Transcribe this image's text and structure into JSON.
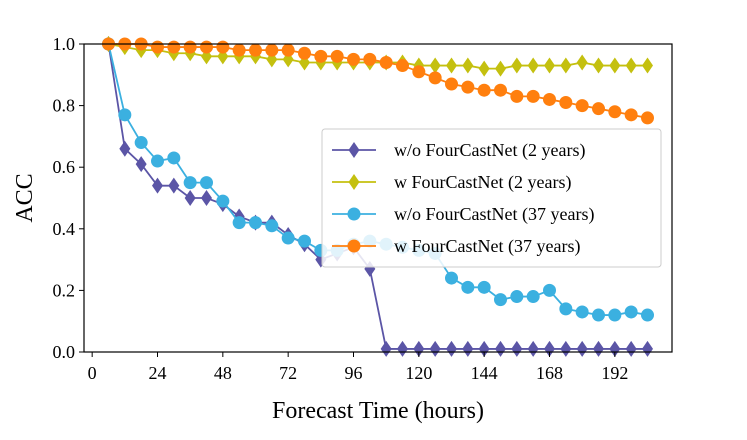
{
  "chart_data": {
    "type": "line",
    "title": "",
    "xlabel": "Forecast Time (hours)",
    "ylabel": "ACC",
    "xlim": [
      -3,
      213
    ],
    "ylim": [
      0,
      1
    ],
    "xticks": [
      0,
      24,
      48,
      72,
      96,
      120,
      144,
      168,
      192
    ],
    "yticks": [
      0.0,
      0.2,
      0.4,
      0.6,
      0.8,
      1.0
    ],
    "ytick_labels": [
      "0.0",
      "0.2",
      "0.4",
      "0.6",
      "0.8",
      "1.0"
    ],
    "legend_position": "center-right",
    "x": [
      6,
      12,
      18,
      24,
      30,
      36,
      42,
      48,
      54,
      60,
      66,
      72,
      78,
      84,
      90,
      96,
      102,
      108,
      114,
      120,
      126,
      132,
      138,
      144,
      150,
      156,
      162,
      168,
      174,
      180,
      186,
      192,
      198,
      204
    ],
    "series": [
      {
        "name": "w/o FourCastNet (2 years)",
        "color": "#5b55a6",
        "marker": "diamond",
        "values": [
          1.0,
          0.66,
          0.61,
          0.54,
          0.54,
          0.5,
          0.5,
          0.48,
          0.44,
          0.42,
          0.42,
          0.38,
          0.35,
          0.3,
          0.32,
          0.34,
          0.27,
          0.01,
          0.01,
          0.01,
          0.01,
          0.01,
          0.01,
          0.01,
          0.01,
          0.01,
          0.01,
          0.01,
          0.01,
          0.01,
          0.01,
          0.01,
          0.01,
          0.01
        ]
      },
      {
        "name": "w FourCastNet (2 years)",
        "color": "#c4c00f",
        "marker": "diamond",
        "values": [
          1.0,
          0.99,
          0.98,
          0.98,
          0.97,
          0.97,
          0.96,
          0.96,
          0.96,
          0.96,
          0.95,
          0.95,
          0.94,
          0.94,
          0.94,
          0.94,
          0.94,
          0.94,
          0.94,
          0.93,
          0.93,
          0.93,
          0.93,
          0.92,
          0.92,
          0.93,
          0.93,
          0.93,
          0.93,
          0.94,
          0.93,
          0.93,
          0.93,
          0.93
        ]
      },
      {
        "name": "w/o FourCastNet (37 years)",
        "color": "#3bb0e0",
        "marker": "circle",
        "values": [
          1.0,
          0.77,
          0.68,
          0.62,
          0.63,
          0.55,
          0.55,
          0.49,
          0.42,
          0.42,
          0.41,
          0.37,
          0.36,
          0.33,
          0.33,
          0.35,
          0.36,
          0.35,
          0.34,
          0.33,
          0.32,
          0.24,
          0.21,
          0.21,
          0.17,
          0.18,
          0.18,
          0.2,
          0.14,
          0.13,
          0.12,
          0.12,
          0.13,
          0.12
        ]
      },
      {
        "name": "w FourCastNet (37 years)",
        "color": "#ff7f0e",
        "marker": "circle",
        "values": [
          1.0,
          1.0,
          1.0,
          0.99,
          0.99,
          0.99,
          0.99,
          0.99,
          0.98,
          0.98,
          0.98,
          0.98,
          0.97,
          0.96,
          0.96,
          0.95,
          0.95,
          0.94,
          0.93,
          0.91,
          0.89,
          0.87,
          0.86,
          0.85,
          0.85,
          0.83,
          0.83,
          0.82,
          0.81,
          0.8,
          0.79,
          0.78,
          0.77,
          0.76
        ]
      }
    ]
  }
}
